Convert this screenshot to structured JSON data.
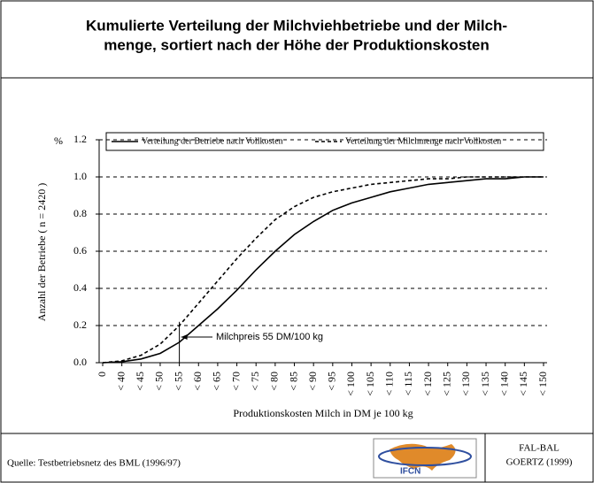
{
  "chart_data": {
    "type": "line",
    "title": [
      "Kumulierte Verteilung der Milchviehbetriebe und der Milch-",
      "menge, sortiert nach der Höhe der Produktionskosten"
    ],
    "x_label": "Produktionskosten Milch in DM je 100 kg",
    "y_label": "Anzahl der Betriebe ( n = 2420 )",
    "y_unit": "%",
    "categories": [
      "0",
      "< 40",
      "< 45",
      "< 50",
      "< 55",
      "< 60",
      "< 65",
      "< 70",
      "< 75",
      "< 80",
      "< 85",
      "< 90",
      "< 95",
      "< 100",
      "< 105",
      "< 110",
      "< 115",
      "< 120",
      "< 125",
      "< 130",
      "< 135",
      "< 140",
      "< 145",
      "< 150"
    ],
    "series": [
      {
        "name": "Verteilung der Betriebe nach Vollkosten",
        "color": "#000000",
        "dash": false,
        "values": [
          0,
          0.005,
          0.02,
          0.05,
          0.11,
          0.2,
          0.29,
          0.39,
          0.5,
          0.6,
          0.69,
          0.76,
          0.82,
          0.86,
          0.89,
          0.92,
          0.94,
          0.96,
          0.97,
          0.98,
          0.99,
          0.99,
          1.0,
          1.0
        ]
      },
      {
        "name": "Verteilung der Milchmenge nach Vollkosten",
        "color": "#000000",
        "dash": true,
        "values": [
          0,
          0.01,
          0.04,
          0.1,
          0.2,
          0.32,
          0.44,
          0.56,
          0.67,
          0.77,
          0.84,
          0.89,
          0.92,
          0.94,
          0.96,
          0.97,
          0.98,
          0.99,
          0.99,
          1.0,
          1.0,
          1.0,
          1.0,
          1.0
        ]
      }
    ],
    "ylim": [
      0,
      1.2
    ],
    "yticks": [
      {
        "value": 0,
        "label": "0.0"
      },
      0.2,
      0.4,
      0.6,
      0.8,
      {
        "value": 1,
        "label": "1.0"
      },
      1.2
    ],
    "grid": true,
    "annotation": "Milchpreis 55 DM/100 kg"
  },
  "footer": {
    "source": "Quelle: Testbetriebsnetz des BML (1996/97)",
    "logo": "IFCN",
    "credit": [
      "FAL-BAL",
      "GOERTZ (1999)"
    ]
  }
}
